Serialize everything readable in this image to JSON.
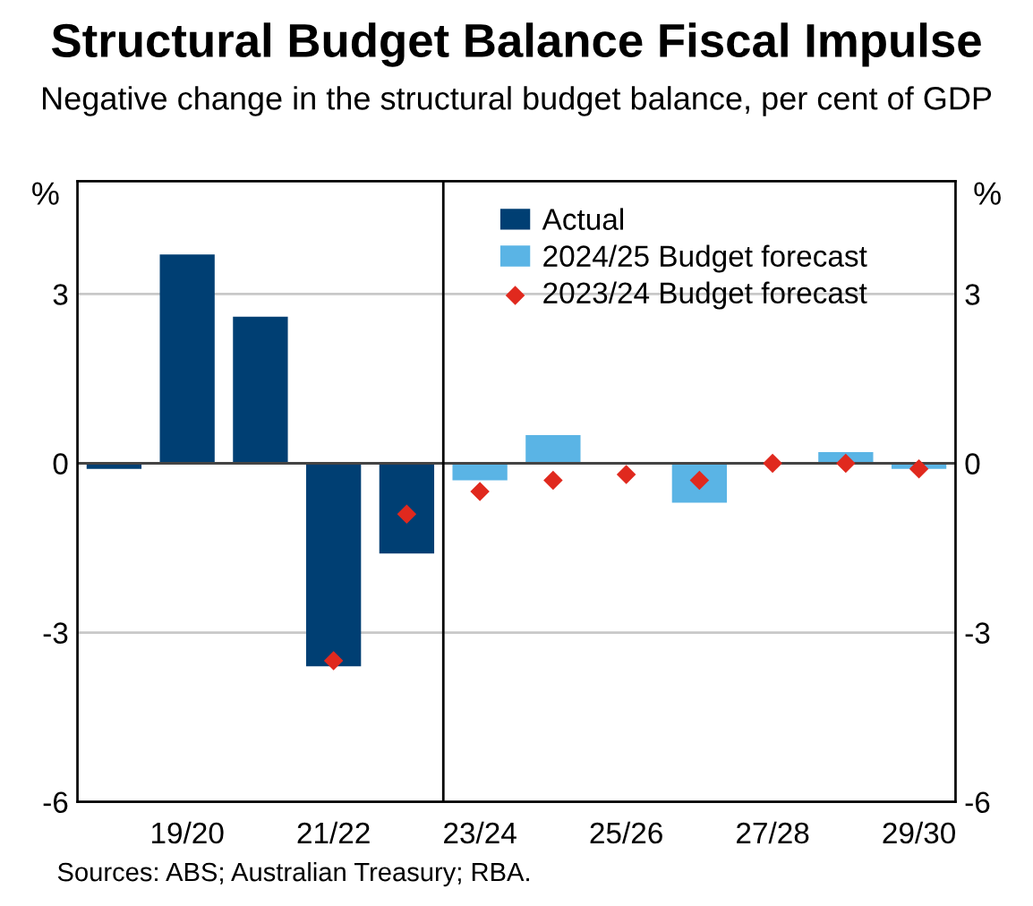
{
  "chart_data": {
    "type": "bar",
    "title": "Structural Budget Balance Fiscal Impulse",
    "subtitle": "Negative change in the structural budget balance, per cent of GDP",
    "categories": [
      null,
      "19/20",
      null,
      "21/22",
      null,
      "23/24",
      null,
      "25/26",
      null,
      "27/28",
      null,
      "29/30"
    ],
    "series": [
      {
        "name": "Actual",
        "color": "#003f73",
        "values": [
          -0.1,
          3.7,
          2.6,
          -3.6,
          -1.6,
          null,
          null,
          null,
          null,
          null,
          null,
          null
        ]
      },
      {
        "name": "2024/25 Budget forecast",
        "color": "#5ab4e5",
        "values": [
          null,
          null,
          null,
          null,
          null,
          -0.3,
          0.5,
          null,
          -0.7,
          null,
          0.2,
          -0.1
        ]
      },
      {
        "name": "2023/24 Budget forecast",
        "color": "#e0291e",
        "type": "scatter",
        "marker": "diamond",
        "values": [
          null,
          null,
          null,
          -3.5,
          -0.9,
          -0.5,
          -0.3,
          -0.2,
          -0.3,
          0.0,
          0.0,
          -0.1
        ]
      }
    ],
    "ylim": [
      -6,
      5
    ],
    "yticks": [
      -6,
      -3,
      0,
      3
    ],
    "y2lim": [
      -6,
      5
    ],
    "y2ticks": [
      -6,
      -3,
      0,
      3
    ],
    "ylabel": "%",
    "y2label": "%",
    "grid": "y",
    "legend": "top right",
    "annotations": [
      "Sources: ABS; Australian Treasury; RBA."
    ]
  }
}
